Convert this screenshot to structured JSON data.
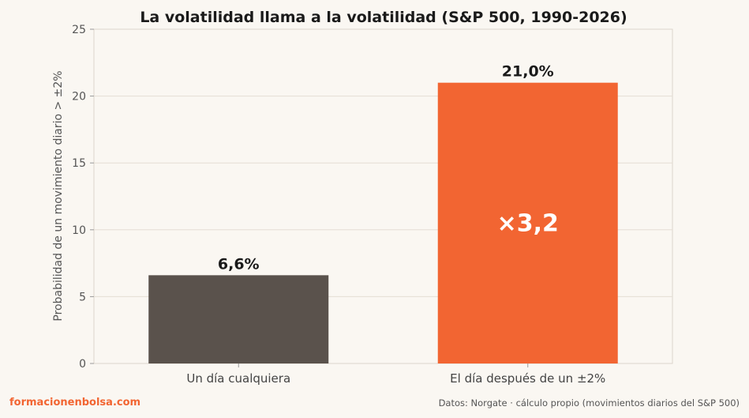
{
  "chart_data": {
    "type": "bar",
    "title": "La volatilidad llama a la volatilidad (S&P 500, 1990-2026)",
    "ylabel": "Probabilidad de un movimiento diario > ±2%",
    "xlabel": "",
    "ylim": [
      0,
      25
    ],
    "yticks": [
      0,
      5,
      10,
      15,
      20,
      25
    ],
    "grid": true,
    "categories": [
      "Un día cualquiera",
      "El día después de un ±2%"
    ],
    "values": [
      6.6,
      21.0
    ],
    "data_labels": [
      "6,6%",
      "21,0%"
    ],
    "colors": [
      "#5a524c",
      "#f26532"
    ],
    "annotation": "×3,2"
  },
  "footer": {
    "brand": "formacionenbolsa.com",
    "source": "Datos: Norgate · cálculo propio (movimientos diarios del S&P 500)"
  },
  "colors": {
    "background": "#faf7f2",
    "brand": "#f26532"
  }
}
